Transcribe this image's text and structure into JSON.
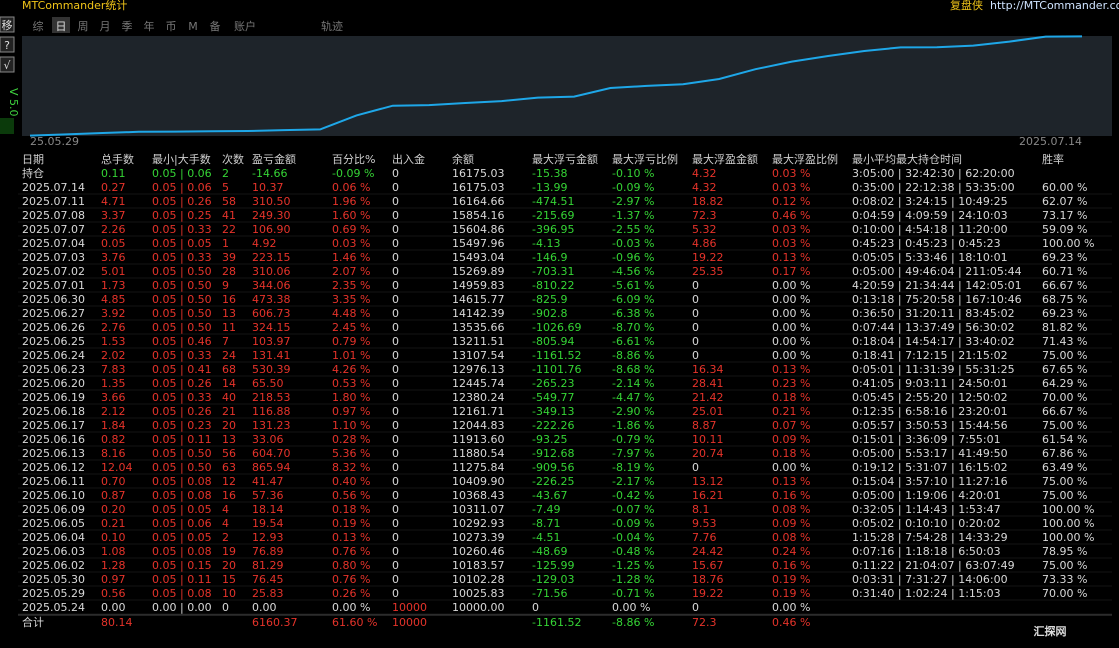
{
  "app_title": "MTCommander统计",
  "brand": "复盘侠",
  "url": "http://MTCommander.com",
  "side_buttons": [
    "移",
    "?",
    "√"
  ],
  "version": "V 5.0",
  "tabs": [
    "综",
    "日",
    "周",
    "月",
    "季",
    "年",
    "币",
    "M",
    "备",
    "账户",
    "轨迹"
  ],
  "active_tab": 1,
  "chart_data": {
    "type": "line",
    "color": "#1ea7e8",
    "background": "#1e242a",
    "categories": [
      "25.05.29",
      null,
      null,
      null,
      null,
      null,
      null,
      null,
      null,
      null,
      null,
      null,
      null,
      null,
      null,
      null,
      null,
      null,
      null,
      null,
      null,
      null,
      null,
      null,
      null,
      null,
      null,
      null,
      null,
      "2025.07.14"
    ],
    "values": [
      10025.83,
      10102.28,
      10183.57,
      10260.46,
      10273.39,
      10292.93,
      10311.07,
      10368.43,
      10409.9,
      11275.84,
      11880.54,
      11913.6,
      12044.83,
      12161.71,
      12380.24,
      12445.74,
      12976.13,
      13107.54,
      13211.51,
      13535.66,
      14142.39,
      14615.77,
      14959.83,
      15269.89,
      15493.04,
      15497.96,
      15604.86,
      15854.16,
      16164.66,
      16175.03
    ],
    "ylim": [
      10000,
      16200
    ]
  },
  "table": {
    "headers": [
      "日期",
      "总手数",
      "最小|大手数",
      "次数",
      "盈亏金额",
      "百分比%",
      "出入金",
      "余额",
      "最大浮亏金额",
      "最大浮亏比例",
      "最大浮盈金额",
      "最大浮盈比例",
      "最小平均最大持仓时间",
      "胜率"
    ],
    "holding": [
      "持仓",
      "0.11",
      "0.05 | 0.06",
      "2",
      "-14.66",
      "-0.09 %",
      "0",
      "16175.03",
      "-15.38",
      "-0.10 %",
      "4.32",
      "0.03 %",
      "3:05:00 | 32:42:30 | 62:20:00"
    ],
    "rows": [
      [
        "2025.07.14",
        "0.27",
        "0.05 | 0.06",
        "5",
        "10.37",
        "0.06 %",
        "0",
        "16175.03",
        "-13.99",
        "-0.09 %",
        "4.32",
        "0.03 %",
        "0:35:00 | 22:12:38 | 53:35:00",
        "60.00 %"
      ],
      [
        "2025.07.11",
        "4.71",
        "0.05 | 0.26",
        "58",
        "310.50",
        "1.96 %",
        "0",
        "16164.66",
        "-474.51",
        "-2.97 %",
        "18.82",
        "0.12 %",
        "0:08:02 | 3:24:15 | 10:49:25",
        "62.07 %"
      ],
      [
        "2025.07.08",
        "3.37",
        "0.05 | 0.25",
        "41",
        "249.30",
        "1.60 %",
        "0",
        "15854.16",
        "-215.69",
        "-1.37 %",
        "72.3",
        "0.46 %",
        "0:04:59 | 4:09:59 | 24:10:03",
        "73.17 %"
      ],
      [
        "2025.07.07",
        "2.26",
        "0.05 | 0.33",
        "22",
        "106.90",
        "0.69 %",
        "0",
        "15604.86",
        "-396.95",
        "-2.55 %",
        "5.32",
        "0.03 %",
        "0:10:00 | 4:54:18 | 11:20:00",
        "59.09 %"
      ],
      [
        "2025.07.04",
        "0.05",
        "0.05 | 0.05",
        "1",
        "4.92",
        "0.03 %",
        "0",
        "15497.96",
        "-4.13",
        "-0.03 %",
        "4.86",
        "0.03 %",
        "0:45:23 | 0:45:23 | 0:45:23",
        "100.00 %"
      ],
      [
        "2025.07.03",
        "3.76",
        "0.05 | 0.33",
        "39",
        "223.15",
        "1.46 %",
        "0",
        "15493.04",
        "-146.9",
        "-0.96 %",
        "19.22",
        "0.13 %",
        "0:05:05 | 5:33:46 | 18:10:01",
        "69.23 %"
      ],
      [
        "2025.07.02",
        "5.01",
        "0.05 | 0.50",
        "28",
        "310.06",
        "2.07 %",
        "0",
        "15269.89",
        "-703.31",
        "-4.56 %",
        "25.35",
        "0.17 %",
        "0:05:00 | 49:46:04 | 211:05:44",
        "60.71 %"
      ],
      [
        "2025.07.01",
        "1.73",
        "0.05 | 0.50",
        "9",
        "344.06",
        "2.35 %",
        "0",
        "14959.83",
        "-810.22",
        "-5.61 %",
        "0",
        "0.00 %",
        "4:20:59 | 21:34:44 | 142:05:01",
        "66.67 %"
      ],
      [
        "2025.06.30",
        "4.85",
        "0.05 | 0.50",
        "16",
        "473.38",
        "3.35 %",
        "0",
        "14615.77",
        "-825.9",
        "-6.09 %",
        "0",
        "0.00 %",
        "0:13:18 | 75:20:58 | 167:10:46",
        "68.75 %"
      ],
      [
        "2025.06.27",
        "3.92",
        "0.05 | 0.50",
        "13",
        "606.73",
        "4.48 %",
        "0",
        "14142.39",
        "-902.8",
        "-6.38 %",
        "0",
        "0.00 %",
        "0:36:50 | 31:20:11 | 83:45:02",
        "69.23 %"
      ],
      [
        "2025.06.26",
        "2.76",
        "0.05 | 0.50",
        "11",
        "324.15",
        "2.45 %",
        "0",
        "13535.66",
        "-1026.69",
        "-8.70 %",
        "0",
        "0.00 %",
        "0:07:44 | 13:37:49 | 56:30:02",
        "81.82 %"
      ],
      [
        "2025.06.25",
        "1.53",
        "0.05 | 0.46",
        "7",
        "103.97",
        "0.79 %",
        "0",
        "13211.51",
        "-805.94",
        "-6.61 %",
        "0",
        "0.00 %",
        "0:18:04 | 14:54:17 | 33:40:02",
        "71.43 %"
      ],
      [
        "2025.06.24",
        "2.02",
        "0.05 | 0.33",
        "24",
        "131.41",
        "1.01 %",
        "0",
        "13107.54",
        "-1161.52",
        "-8.86 %",
        "0",
        "0.00 %",
        "0:18:41 | 7:12:15 | 21:15:02",
        "75.00 %"
      ],
      [
        "2025.06.23",
        "7.83",
        "0.05 | 0.41",
        "68",
        "530.39",
        "4.26 %",
        "0",
        "12976.13",
        "-1101.76",
        "-8.68 %",
        "16.34",
        "0.13 %",
        "0:05:01 | 11:31:39 | 55:31:25",
        "67.65 %"
      ],
      [
        "2025.06.20",
        "1.35",
        "0.05 | 0.26",
        "14",
        "65.50",
        "0.53 %",
        "0",
        "12445.74",
        "-265.23",
        "-2.14 %",
        "28.41",
        "0.23 %",
        "0:41:05 | 9:03:11 | 24:50:01",
        "64.29 %"
      ],
      [
        "2025.06.19",
        "3.66",
        "0.05 | 0.33",
        "40",
        "218.53",
        "1.80 %",
        "0",
        "12380.24",
        "-549.77",
        "-4.47 %",
        "21.42",
        "0.18 %",
        "0:05:45 | 2:55:20 | 12:50:02",
        "70.00 %"
      ],
      [
        "2025.06.18",
        "2.12",
        "0.05 | 0.26",
        "21",
        "116.88",
        "0.97 %",
        "0",
        "12161.71",
        "-349.13",
        "-2.90 %",
        "25.01",
        "0.21 %",
        "0:12:35 | 6:58:16 | 23:20:01",
        "66.67 %"
      ],
      [
        "2025.06.17",
        "1.84",
        "0.05 | 0.23",
        "20",
        "131.23",
        "1.10 %",
        "0",
        "12044.83",
        "-222.26",
        "-1.86 %",
        "8.87",
        "0.07 %",
        "0:05:57 | 3:50:53 | 15:44:56",
        "75.00 %"
      ],
      [
        "2025.06.16",
        "0.82",
        "0.05 | 0.11",
        "13",
        "33.06",
        "0.28 %",
        "0",
        "11913.60",
        "-93.25",
        "-0.79 %",
        "10.11",
        "0.09 %",
        "0:15:01 | 3:36:09 | 7:55:01",
        "61.54 %"
      ],
      [
        "2025.06.13",
        "8.16",
        "0.05 | 0.50",
        "56",
        "604.70",
        "5.36 %",
        "0",
        "11880.54",
        "-912.68",
        "-7.97 %",
        "20.74",
        "0.18 %",
        "0:05:00 | 5:53:17 | 41:49:50",
        "67.86 %"
      ],
      [
        "2025.06.12",
        "12.04",
        "0.05 | 0.50",
        "63",
        "865.94",
        "8.32 %",
        "0",
        "11275.84",
        "-909.56",
        "-8.19 %",
        "0",
        "0.00 %",
        "0:19:12 | 5:31:07 | 16:15:02",
        "63.49 %"
      ],
      [
        "2025.06.11",
        "0.70",
        "0.05 | 0.08",
        "12",
        "41.47",
        "0.40 %",
        "0",
        "10409.90",
        "-226.25",
        "-2.17 %",
        "13.12",
        "0.13 %",
        "0:15:04 | 3:57:10 | 11:27:16",
        "75.00 %"
      ],
      [
        "2025.06.10",
        "0.87",
        "0.05 | 0.08",
        "16",
        "57.36",
        "0.56 %",
        "0",
        "10368.43",
        "-43.67",
        "-0.42 %",
        "16.21",
        "0.16 %",
        "0:05:00 | 1:19:06 | 4:20:01",
        "75.00 %"
      ],
      [
        "2025.06.09",
        "0.20",
        "0.05 | 0.05",
        "4",
        "18.14",
        "0.18 %",
        "0",
        "10311.07",
        "-7.49",
        "-0.07 %",
        "8.1",
        "0.08 %",
        "0:32:05 | 1:14:43 | 1:53:47",
        "100.00 %"
      ],
      [
        "2025.06.05",
        "0.21",
        "0.05 | 0.06",
        "4",
        "19.54",
        "0.19 %",
        "0",
        "10292.93",
        "-8.71",
        "-0.09 %",
        "9.53",
        "0.09 %",
        "0:05:02 | 0:10:10 | 0:20:02",
        "100.00 %"
      ],
      [
        "2025.06.04",
        "0.10",
        "0.05 | 0.05",
        "2",
        "12.93",
        "0.13 %",
        "0",
        "10273.39",
        "-4.51",
        "-0.04 %",
        "7.76",
        "0.08 %",
        "1:15:28 | 7:54:28 | 14:33:29",
        "100.00 %"
      ],
      [
        "2025.06.03",
        "1.08",
        "0.05 | 0.08",
        "19",
        "76.89",
        "0.76 %",
        "0",
        "10260.46",
        "-48.69",
        "-0.48 %",
        "24.42",
        "0.24 %",
        "0:07:16 | 1:18:18 | 6:50:03",
        "78.95 %"
      ],
      [
        "2025.06.02",
        "1.28",
        "0.05 | 0.15",
        "20",
        "81.29",
        "0.80 %",
        "0",
        "10183.57",
        "-125.99",
        "-1.25 %",
        "15.67",
        "0.16 %",
        "0:11:22 | 21:04:07 | 63:07:49",
        "75.00 %"
      ],
      [
        "2025.05.30",
        "0.97",
        "0.05 | 0.11",
        "15",
        "76.45",
        "0.76 %",
        "0",
        "10102.28",
        "-129.03",
        "-1.28 %",
        "18.76",
        "0.19 %",
        "0:03:31 | 7:31:27 | 14:06:00",
        "73.33 %"
      ],
      [
        "2025.05.29",
        "0.56",
        "0.05 | 0.08",
        "10",
        "25.83",
        "0.26 %",
        "0",
        "10025.83",
        "-71.56",
        "-0.71 %",
        "19.22",
        "0.19 %",
        "0:31:40 | 1:02:24 | 1:15:03",
        "70.00 %"
      ],
      [
        "2025.05.24",
        "0.00",
        "0.00 | 0.00",
        "0",
        "0.00",
        "0.00 %",
        "10000",
        "10000.00",
        "0",
        "0.00 %",
        "0",
        "0.00 %"
      ]
    ],
    "total": [
      "合计",
      "80.14",
      null,
      null,
      "6160.37",
      "61.60 %",
      "10000",
      null,
      "-1161.52",
      "-8.86 %",
      "72.3",
      "0.46 %"
    ]
  },
  "watermark": "汇探网"
}
